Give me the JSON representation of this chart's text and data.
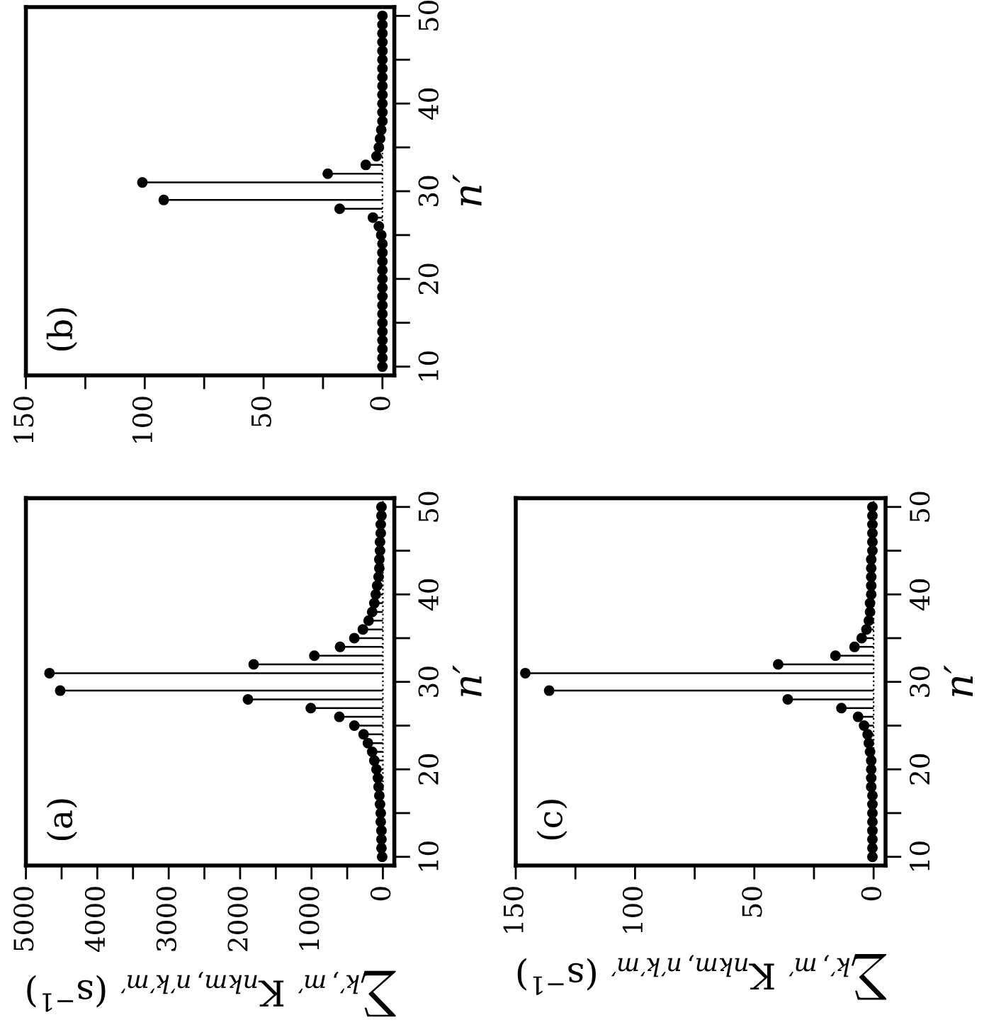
{
  "chart_data": [
    {
      "type": "lollipop",
      "orientation": "horizontal",
      "annotations": [
        "(b)"
      ],
      "ylabel": "n′",
      "marker": "circle",
      "line_style": "solid",
      "ref_lines": [
        {
          "axis": "x",
          "value": 0,
          "line_style": "dotted"
        }
      ],
      "x": [
        10,
        11,
        12,
        13,
        14,
        15,
        16,
        17,
        18,
        19,
        20,
        21,
        22,
        23,
        24,
        25,
        26,
        27,
        28,
        29,
        30,
        31,
        32,
        33,
        34,
        35,
        36,
        37,
        38,
        39,
        40,
        41,
        42,
        43,
        44,
        45,
        46,
        47,
        48,
        49,
        50
      ],
      "series": [
        {
          "color": "#000000",
          "values": [
            0,
            0,
            0,
            0,
            0,
            0,
            0,
            0,
            0,
            0,
            0,
            0,
            0,
            0,
            0,
            0.5,
            1.5,
            4,
            18,
            92,
            null,
            101,
            23,
            7,
            2.5,
            1.5,
            1,
            0.5,
            0,
            0,
            0,
            0,
            0,
            0,
            0,
            0,
            0,
            0,
            0,
            0,
            0
          ]
        }
      ],
      "xlim": [
        150,
        -5
      ],
      "xticks": [
        0,
        {
          "value": 25,
          "label": null
        },
        50,
        {
          "value": 75,
          "label": null
        },
        100,
        {
          "value": 125,
          "label": null
        },
        150
      ],
      "ylim": [
        9,
        51
      ],
      "yticks": [
        10,
        {
          "value": 15,
          "label": null
        },
        20,
        {
          "value": 25,
          "label": null
        },
        30,
        {
          "value": 35,
          "label": null
        },
        40,
        {
          "value": 45,
          "label": null
        },
        50
      ]
    },
    {
      "type": "lollipop",
      "orientation": "horizontal",
      "annotations": [
        "(a)"
      ],
      "xlabel": "∑$_{k′,m′}$ K$_{nkm,n′k′m′}$ (s$^{−1}$)",
      "ylabel": "n′",
      "marker": "circle",
      "line_style": "solid",
      "ref_lines": [
        {
          "axis": "x",
          "value": 0,
          "line_style": "dotted"
        }
      ],
      "x": [
        10,
        11,
        12,
        13,
        14,
        15,
        16,
        17,
        18,
        19,
        20,
        21,
        22,
        23,
        24,
        25,
        26,
        27,
        28,
        29,
        30,
        31,
        32,
        33,
        34,
        35,
        36,
        37,
        38,
        39,
        40,
        41,
        42,
        43,
        44,
        45,
        46,
        47,
        48,
        49,
        50
      ],
      "series": [
        {
          "color": "#000000",
          "values": [
            10,
            20,
            20,
            20,
            30,
            30,
            40,
            50,
            60,
            70,
            90,
            120,
            150,
            210,
            270,
            400,
            610,
            1010,
            1890,
            4520,
            null,
            4670,
            1810,
            960,
            600,
            400,
            280,
            200,
            150,
            120,
            100,
            80,
            60,
            50,
            50,
            40,
            40,
            30,
            30,
            20,
            20
          ]
        }
      ],
      "xlim": [
        5000,
        -160
      ],
      "xticks": [
        0,
        {
          "value": 500,
          "label": null
        },
        1000,
        {
          "value": 1500,
          "label": null
        },
        2000,
        {
          "value": 2500,
          "label": null
        },
        3000,
        {
          "value": 3500,
          "label": null
        },
        4000,
        {
          "value": 4500,
          "label": null
        },
        5000
      ],
      "ylim": [
        9,
        51
      ],
      "yticks": [
        10,
        {
          "value": 15,
          "label": null
        },
        20,
        {
          "value": 25,
          "label": null
        },
        30,
        {
          "value": 35,
          "label": null
        },
        40,
        {
          "value": 45,
          "label": null
        },
        50
      ]
    },
    {
      "type": "lollipop",
      "orientation": "horizontal",
      "annotations": [
        "(c)"
      ],
      "xlabel": "∑$_{k′,m′}$ K$_{nkm,n′k′m′}$ (s$^{−1}$)",
      "ylabel": "n′",
      "marker": "circle",
      "line_style": "solid",
      "ref_lines": [
        {
          "axis": "x",
          "value": 0,
          "line_style": "dotted"
        }
      ],
      "x": [
        10,
        11,
        12,
        13,
        14,
        15,
        16,
        17,
        18,
        19,
        20,
        21,
        22,
        23,
        24,
        25,
        26,
        27,
        28,
        29,
        30,
        31,
        32,
        33,
        34,
        35,
        36,
        37,
        38,
        39,
        40,
        41,
        42,
        43,
        44,
        45,
        46,
        47,
        48,
        49,
        50
      ],
      "series": [
        {
          "color": "#000000",
          "values": [
            0.5,
            0.5,
            0.5,
            0.5,
            0.5,
            0.5,
            0.5,
            0.5,
            1,
            1,
            1,
            1,
            1.5,
            2,
            2.5,
            4,
            6.5,
            13.5,
            36,
            136,
            null,
            146,
            40,
            16,
            8,
            5,
            3,
            2,
            1.5,
            1.5,
            1,
            1,
            1,
            1,
            1,
            0.5,
            0.5,
            0.5,
            0.5,
            0.5,
            0.5
          ]
        }
      ],
      "xlim": [
        150,
        -5
      ],
      "xticks": [
        0,
        {
          "value": 25,
          "label": null
        },
        50,
        {
          "value": 75,
          "label": null
        },
        100,
        {
          "value": 125,
          "label": null
        },
        150
      ],
      "ylim": [
        9,
        51
      ],
      "yticks": [
        10,
        {
          "value": 15,
          "label": null
        },
        20,
        {
          "value": 25,
          "label": null
        },
        30,
        {
          "value": 35,
          "label": null
        },
        40,
        {
          "value": 45,
          "label": null
        },
        50
      ]
    }
  ]
}
